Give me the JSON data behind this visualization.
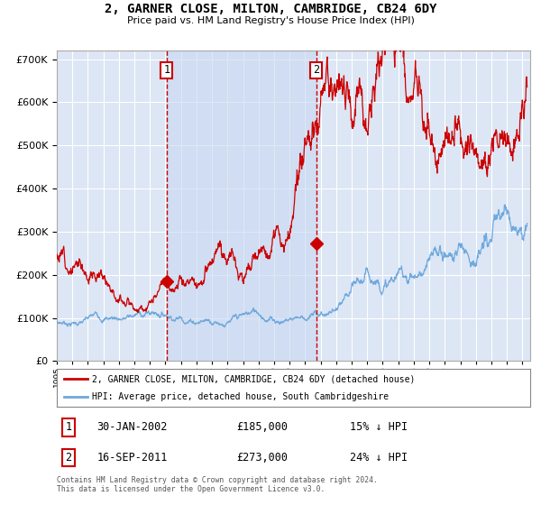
{
  "title": "2, GARNER CLOSE, MILTON, CAMBRIDGE, CB24 6DY",
  "subtitle": "Price paid vs. HM Land Registry's House Price Index (HPI)",
  "background_color": "#ffffff",
  "plot_bg_color": "#dce6f5",
  "plot_bg_highlight": "#c8d8f0",
  "grid_color": "#ffffff",
  "hpi_color": "#6fa8dc",
  "price_color": "#cc0000",
  "sale1_date_num": 2002.08,
  "sale1_price": 185000,
  "sale2_date_num": 2011.72,
  "sale2_price": 273000,
  "legend_line1": "2, GARNER CLOSE, MILTON, CAMBRIDGE, CB24 6DY (detached house)",
  "legend_line2": "HPI: Average price, detached house, South Cambridgeshire",
  "footer": "Contains HM Land Registry data © Crown copyright and database right 2024.\nThis data is licensed under the Open Government Licence v3.0.",
  "ylim": [
    0,
    720000
  ],
  "xlim_start": 1995.0,
  "xlim_end": 2025.5
}
